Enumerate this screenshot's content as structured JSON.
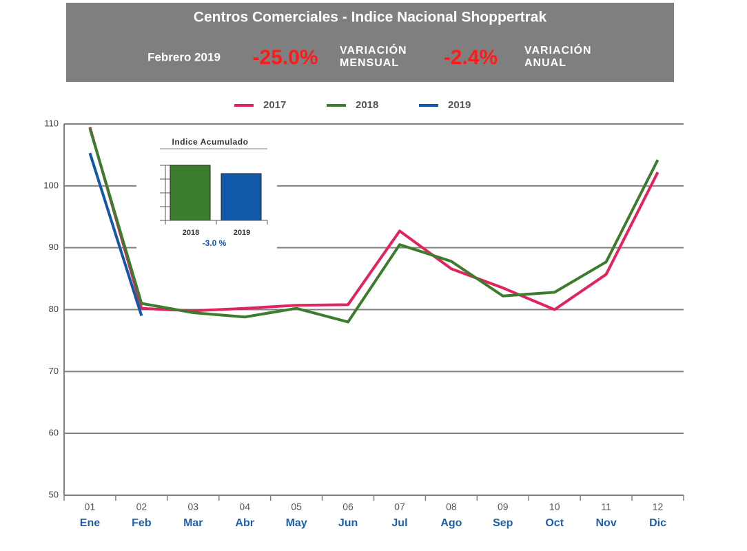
{
  "chart_data": {
    "type": "line",
    "title": "Centros Comerciales - Indice Nacional Shoppertrak",
    "period": "Febrero 2019",
    "stats": [
      {
        "value": "-25.0%",
        "label": [
          "VARIACIÓN",
          "MENSUAL"
        ]
      },
      {
        "value": "-2.4%",
        "label": [
          "VARIACIÓN",
          "ANUAL"
        ]
      }
    ],
    "categories": [
      "01",
      "02",
      "03",
      "04",
      "05",
      "06",
      "07",
      "08",
      "09",
      "10",
      "11",
      "12"
    ],
    "category_labels": [
      "Ene",
      "Feb",
      "Mar",
      "Abr",
      "May",
      "Jun",
      "Jul",
      "Ago",
      "Sep",
      "Oct",
      "Nov",
      "Dic"
    ],
    "series": [
      {
        "name": "2017",
        "color": "#e0245e",
        "values": [
          109.5,
          80.2,
          79.8,
          80.2,
          80.7,
          80.8,
          92.7,
          86.6,
          83.5,
          80.0,
          85.7,
          102.2
        ]
      },
      {
        "name": "2018",
        "color": "#3b7d2c",
        "values": [
          109.3,
          81.0,
          79.5,
          78.8,
          80.2,
          78.0,
          90.5,
          87.8,
          82.2,
          82.8,
          87.7,
          104.2
        ]
      },
      {
        "name": "2019",
        "color": "#1258a8",
        "values": [
          105.3,
          79.0,
          null,
          null,
          null,
          null,
          null,
          null,
          null,
          null,
          null,
          null
        ]
      }
    ],
    "ylim": [
      50,
      110
    ],
    "yticks": [
      50,
      60,
      70,
      80,
      90,
      100,
      110
    ],
    "grid": true,
    "legend": "top",
    "inset": {
      "type": "bar",
      "title": "Indice Acumulado",
      "categories": [
        "2018",
        "2019"
      ],
      "values": [
        100,
        97
      ],
      "colors": [
        "#3b7d2c",
        "#1258a8"
      ],
      "ylim": [
        80,
        100
      ],
      "annotation": "-3.0 %"
    }
  }
}
